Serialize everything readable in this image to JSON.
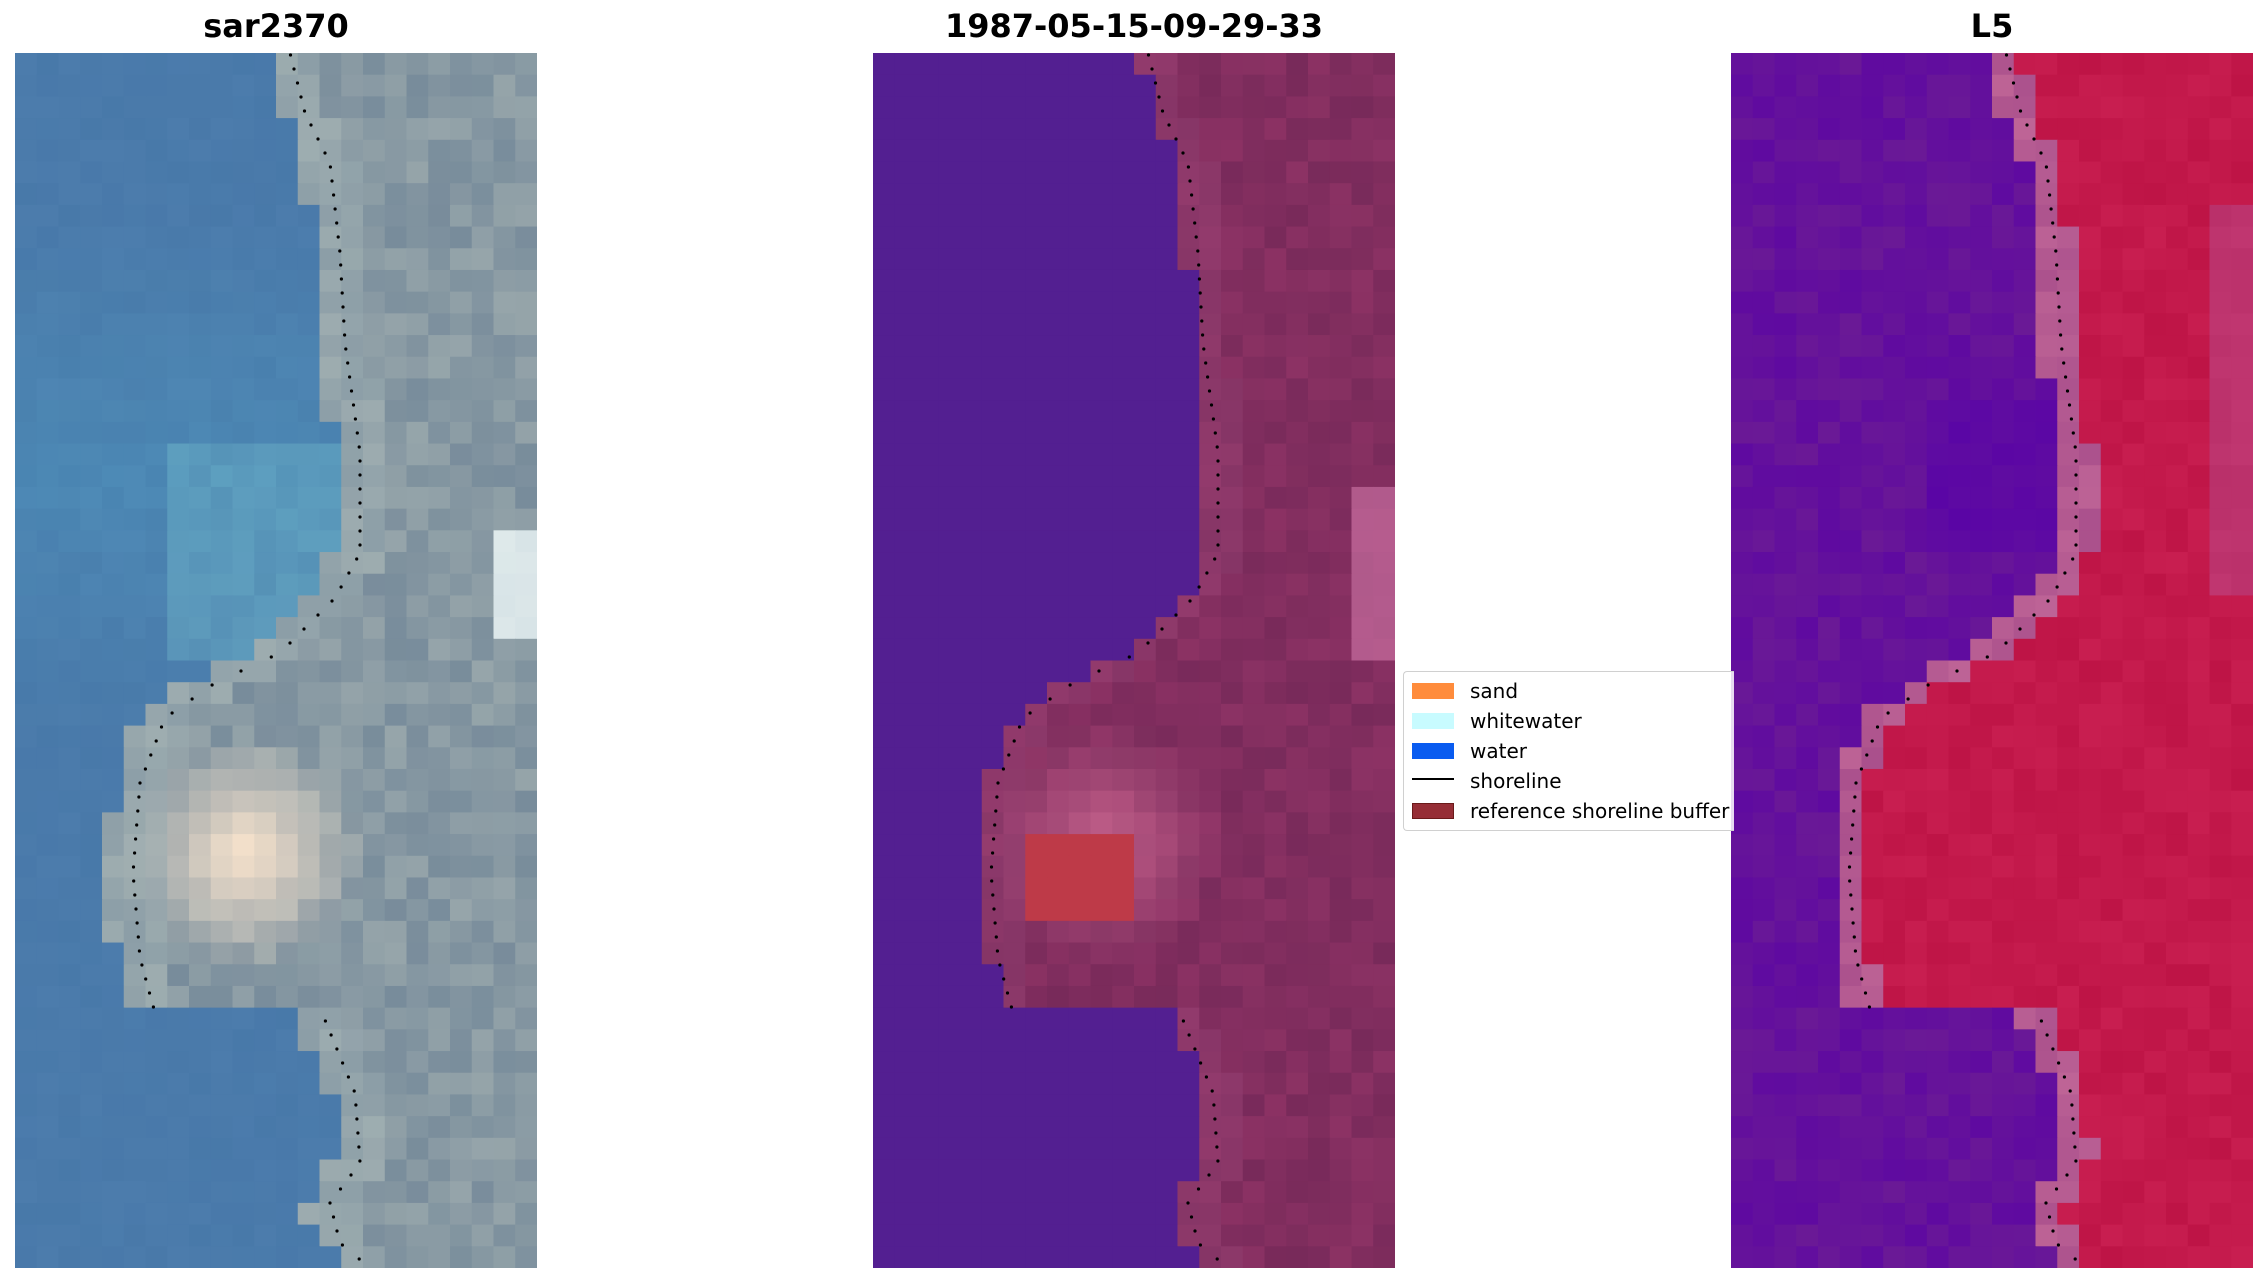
{
  "panels": [
    {
      "id": "rgb",
      "title": "sar2370"
    },
    {
      "id": "class",
      "title": "1987-05-15-09-29-33"
    },
    {
      "id": "mndwi",
      "title": "L5"
    }
  ],
  "legend": {
    "items": [
      {
        "label": "sand",
        "color": "#ff8c3c",
        "kind": "patch"
      },
      {
        "label": "whitewater",
        "color": "#c8fbff",
        "kind": "patch"
      },
      {
        "label": "water",
        "color": "#0a5cf0",
        "kind": "patch"
      },
      {
        "label": "shoreline",
        "color": "#000000",
        "kind": "line"
      },
      {
        "label": "reference shoreline buffer",
        "color": "#962e36",
        "kind": "patch-border"
      }
    ]
  },
  "colors": {
    "water_class": "#531f91",
    "sand_class": "#be3a48"
  }
}
